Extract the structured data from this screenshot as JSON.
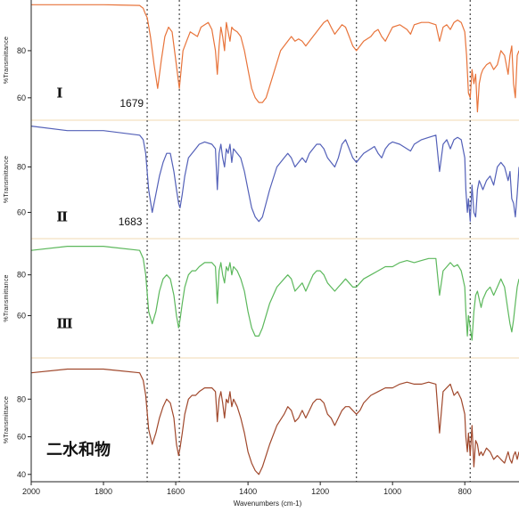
{
  "chart_data": {
    "type": "line",
    "xlabel": "Wavenumbers (cm-1)",
    "xlim": [
      2000,
      650
    ],
    "x_ticks": [
      2000,
      1800,
      1600,
      1400,
      1200,
      1000,
      800
    ],
    "ylabel": "%Transmittance",
    "reference_lines": [
      1679,
      1590,
      1100,
      785
    ],
    "grid": false,
    "panels": [
      {
        "label": "Ⅰ",
        "color": "#e8743b",
        "ylim": [
          52,
          100
        ],
        "y_ticks": [
          60,
          80
        ],
        "peak_label": "1679",
        "peak_label_wavenumber": 1679,
        "x": [
          2000,
          1800,
          1700,
          1690,
          1685,
          1679,
          1670,
          1660,
          1650,
          1640,
          1630,
          1620,
          1610,
          1600,
          1595,
          1590,
          1585,
          1580,
          1570,
          1560,
          1550,
          1540,
          1530,
          1510,
          1500,
          1490,
          1485,
          1480,
          1475,
          1470,
          1465,
          1460,
          1450,
          1445,
          1440,
          1430,
          1420,
          1410,
          1400,
          1390,
          1380,
          1370,
          1360,
          1350,
          1330,
          1310,
          1300,
          1290,
          1280,
          1270,
          1260,
          1250,
          1240,
          1230,
          1220,
          1210,
          1200,
          1190,
          1180,
          1170,
          1160,
          1150,
          1140,
          1130,
          1120,
          1110,
          1100,
          1090,
          1080,
          1060,
          1050,
          1040,
          1030,
          1020,
          1010,
          1000,
          980,
          960,
          950,
          940,
          920,
          900,
          880,
          870,
          860,
          850,
          840,
          830,
          820,
          810,
          800,
          795,
          790,
          785,
          780,
          775,
          770,
          765,
          760,
          755,
          750,
          740,
          730,
          720,
          710,
          700,
          690,
          680,
          675,
          670,
          665,
          660,
          655,
          650
        ],
        "y": [
          99.5,
          99.5,
          99.2,
          98,
          96,
          94,
          86,
          74,
          64,
          76,
          86,
          90,
          88,
          76,
          70,
          64,
          72,
          80,
          84,
          88,
          87,
          86,
          90,
          92,
          89,
          80,
          70,
          82,
          90,
          86,
          80,
          92,
          84,
          90,
          89,
          88,
          86,
          80,
          72,
          64,
          60,
          58,
          58,
          60,
          70,
          80,
          82,
          84,
          86,
          84,
          85,
          84,
          82,
          84,
          86,
          88,
          90,
          92,
          93,
          90,
          87,
          89,
          91,
          90,
          86,
          82,
          80,
          82,
          84,
          86,
          88,
          89,
          86,
          84,
          87,
          90,
          91,
          89,
          87,
          91,
          92,
          92,
          91,
          84,
          90,
          91,
          89,
          92,
          93,
          92,
          88,
          78,
          62,
          60,
          72,
          66,
          70,
          54,
          66,
          70,
          72,
          74,
          75,
          72,
          74,
          80,
          78,
          70,
          78,
          82,
          66,
          60,
          78,
          80
        ],
        "label_wavenumber": 1930,
        "label_y": 62
      },
      {
        "label": "Ⅱ",
        "color": "#5360b8",
        "ylim": [
          50,
          99
        ],
        "y_ticks": [
          60,
          80
        ],
        "peak_label": "1683",
        "peak_label_wavenumber": 1683,
        "x": [
          2000,
          1900,
          1800,
          1700,
          1690,
          1683,
          1675,
          1665,
          1655,
          1645,
          1635,
          1625,
          1615,
          1605,
          1598,
          1592,
          1588,
          1582,
          1575,
          1565,
          1555,
          1545,
          1535,
          1520,
          1500,
          1490,
          1485,
          1480,
          1475,
          1470,
          1465,
          1460,
          1455,
          1450,
          1445,
          1440,
          1430,
          1420,
          1410,
          1400,
          1390,
          1380,
          1370,
          1360,
          1340,
          1320,
          1300,
          1290,
          1280,
          1270,
          1260,
          1250,
          1240,
          1230,
          1220,
          1210,
          1200,
          1190,
          1180,
          1170,
          1160,
          1150,
          1140,
          1130,
          1120,
          1110,
          1100,
          1090,
          1080,
          1060,
          1050,
          1040,
          1030,
          1020,
          1010,
          1000,
          980,
          960,
          950,
          940,
          920,
          900,
          880,
          870,
          860,
          850,
          840,
          830,
          820,
          810,
          800,
          797,
          793,
          790,
          785,
          780,
          775,
          770,
          765,
          760,
          755,
          750,
          740,
          730,
          720,
          710,
          700,
          690,
          680,
          675,
          670,
          665,
          660,
          655,
          650
        ],
        "y": [
          98,
          96,
          96,
          94,
          92,
          86,
          70,
          60,
          68,
          76,
          82,
          86,
          86,
          78,
          70,
          64,
          62,
          68,
          76,
          84,
          86,
          88,
          90,
          91,
          90,
          88,
          70,
          86,
          90,
          84,
          80,
          88,
          86,
          90,
          82,
          88,
          86,
          84,
          78,
          70,
          62,
          58,
          56,
          58,
          70,
          80,
          84,
          86,
          84,
          80,
          82,
          84,
          82,
          86,
          88,
          90,
          90,
          88,
          84,
          82,
          80,
          84,
          90,
          92,
          88,
          84,
          82,
          84,
          86,
          88,
          89,
          86,
          84,
          88,
          90,
          91,
          90,
          88,
          87,
          90,
          92,
          93,
          94,
          78,
          90,
          92,
          88,
          92,
          93,
          92,
          84,
          70,
          60,
          66,
          56,
          72,
          60,
          58,
          70,
          74,
          72,
          70,
          74,
          76,
          72,
          80,
          82,
          80,
          74,
          78,
          66,
          64,
          58,
          68,
          80
        ],
        "label_wavenumber": 1930,
        "label_y": 58
      },
      {
        "label": "Ⅲ",
        "color": "#5cb85c",
        "ylim": [
          41,
          96
        ],
        "y_ticks": [
          60,
          80
        ],
        "x": [
          2000,
          1900,
          1800,
          1700,
          1690,
          1683,
          1675,
          1665,
          1655,
          1645,
          1635,
          1625,
          1615,
          1605,
          1598,
          1592,
          1588,
          1582,
          1575,
          1565,
          1555,
          1545,
          1535,
          1520,
          1500,
          1490,
          1485,
          1480,
          1475,
          1470,
          1465,
          1460,
          1455,
          1450,
          1445,
          1440,
          1430,
          1420,
          1410,
          1400,
          1390,
          1380,
          1370,
          1360,
          1340,
          1320,
          1300,
          1290,
          1280,
          1270,
          1260,
          1250,
          1240,
          1230,
          1220,
          1210,
          1200,
          1190,
          1180,
          1170,
          1160,
          1150,
          1140,
          1130,
          1120,
          1110,
          1100,
          1090,
          1080,
          1060,
          1040,
          1020,
          1000,
          980,
          960,
          940,
          920,
          900,
          880,
          870,
          860,
          850,
          840,
          830,
          820,
          810,
          800,
          797,
          793,
          790,
          785,
          780,
          775,
          770,
          765,
          760,
          755,
          750,
          740,
          730,
          720,
          710,
          700,
          690,
          680,
          675,
          670,
          665,
          660,
          655,
          650
        ],
        "y": [
          92,
          94,
          94,
          92,
          88,
          80,
          62,
          56,
          62,
          72,
          78,
          80,
          78,
          70,
          60,
          54,
          58,
          66,
          74,
          80,
          82,
          82,
          84,
          86,
          86,
          84,
          66,
          82,
          86,
          80,
          76,
          84,
          82,
          86,
          80,
          84,
          82,
          78,
          72,
          62,
          54,
          50,
          50,
          54,
          66,
          74,
          78,
          80,
          78,
          72,
          74,
          76,
          72,
          76,
          80,
          82,
          82,
          80,
          76,
          74,
          72,
          74,
          76,
          78,
          76,
          74,
          74,
          76,
          78,
          80,
          82,
          84,
          84,
          86,
          87,
          86,
          87,
          88,
          88,
          70,
          82,
          84,
          86,
          84,
          85,
          82,
          74,
          62,
          50,
          60,
          54,
          48,
          62,
          70,
          72,
          68,
          64,
          68,
          72,
          74,
          70,
          74,
          78,
          74,
          62,
          56,
          52,
          58,
          66,
          74,
          78
        ],
        "label_wavenumber": 1930,
        "label_y": 56
      },
      {
        "label": "二水和物",
        "color": "#a0482c",
        "ylim": [
          38,
          100
        ],
        "y_ticks": [
          40,
          60,
          80
        ],
        "x": [
          2000,
          1900,
          1800,
          1700,
          1690,
          1683,
          1675,
          1665,
          1655,
          1645,
          1635,
          1625,
          1615,
          1605,
          1598,
          1592,
          1588,
          1582,
          1575,
          1565,
          1555,
          1545,
          1535,
          1520,
          1500,
          1490,
          1485,
          1480,
          1475,
          1470,
          1465,
          1460,
          1455,
          1450,
          1445,
          1440,
          1430,
          1420,
          1410,
          1400,
          1390,
          1380,
          1370,
          1360,
          1340,
          1320,
          1300,
          1290,
          1280,
          1270,
          1260,
          1250,
          1240,
          1230,
          1220,
          1210,
          1200,
          1190,
          1180,
          1170,
          1160,
          1150,
          1140,
          1130,
          1120,
          1110,
          1100,
          1090,
          1080,
          1060,
          1040,
          1020,
          1000,
          980,
          960,
          940,
          920,
          900,
          880,
          870,
          860,
          850,
          840,
          830,
          820,
          810,
          800,
          797,
          793,
          790,
          785,
          780,
          775,
          770,
          765,
          760,
          755,
          750,
          740,
          730,
          720,
          710,
          700,
          690,
          680,
          675,
          670,
          665,
          660,
          655,
          650
        ],
        "y": [
          94,
          96,
          96,
          94,
          90,
          82,
          64,
          56,
          62,
          70,
          76,
          80,
          78,
          70,
          56,
          50,
          54,
          62,
          72,
          80,
          82,
          82,
          84,
          86,
          86,
          84,
          68,
          80,
          84,
          78,
          70,
          80,
          78,
          84,
          76,
          80,
          76,
          70,
          62,
          52,
          46,
          42,
          40,
          44,
          56,
          66,
          72,
          76,
          74,
          68,
          70,
          74,
          70,
          74,
          78,
          80,
          80,
          78,
          72,
          70,
          66,
          70,
          74,
          76,
          76,
          74,
          72,
          74,
          78,
          82,
          84,
          86,
          86,
          88,
          89,
          88,
          88,
          89,
          88,
          62,
          84,
          86,
          88,
          82,
          84,
          80,
          72,
          60,
          52,
          62,
          50,
          66,
          44,
          58,
          56,
          50,
          52,
          50,
          54,
          52,
          48,
          50,
          48,
          46,
          52,
          48,
          46,
          50,
          52,
          48,
          52
        ],
        "label_wavenumber": 1930,
        "label_y": 52
      }
    ]
  }
}
